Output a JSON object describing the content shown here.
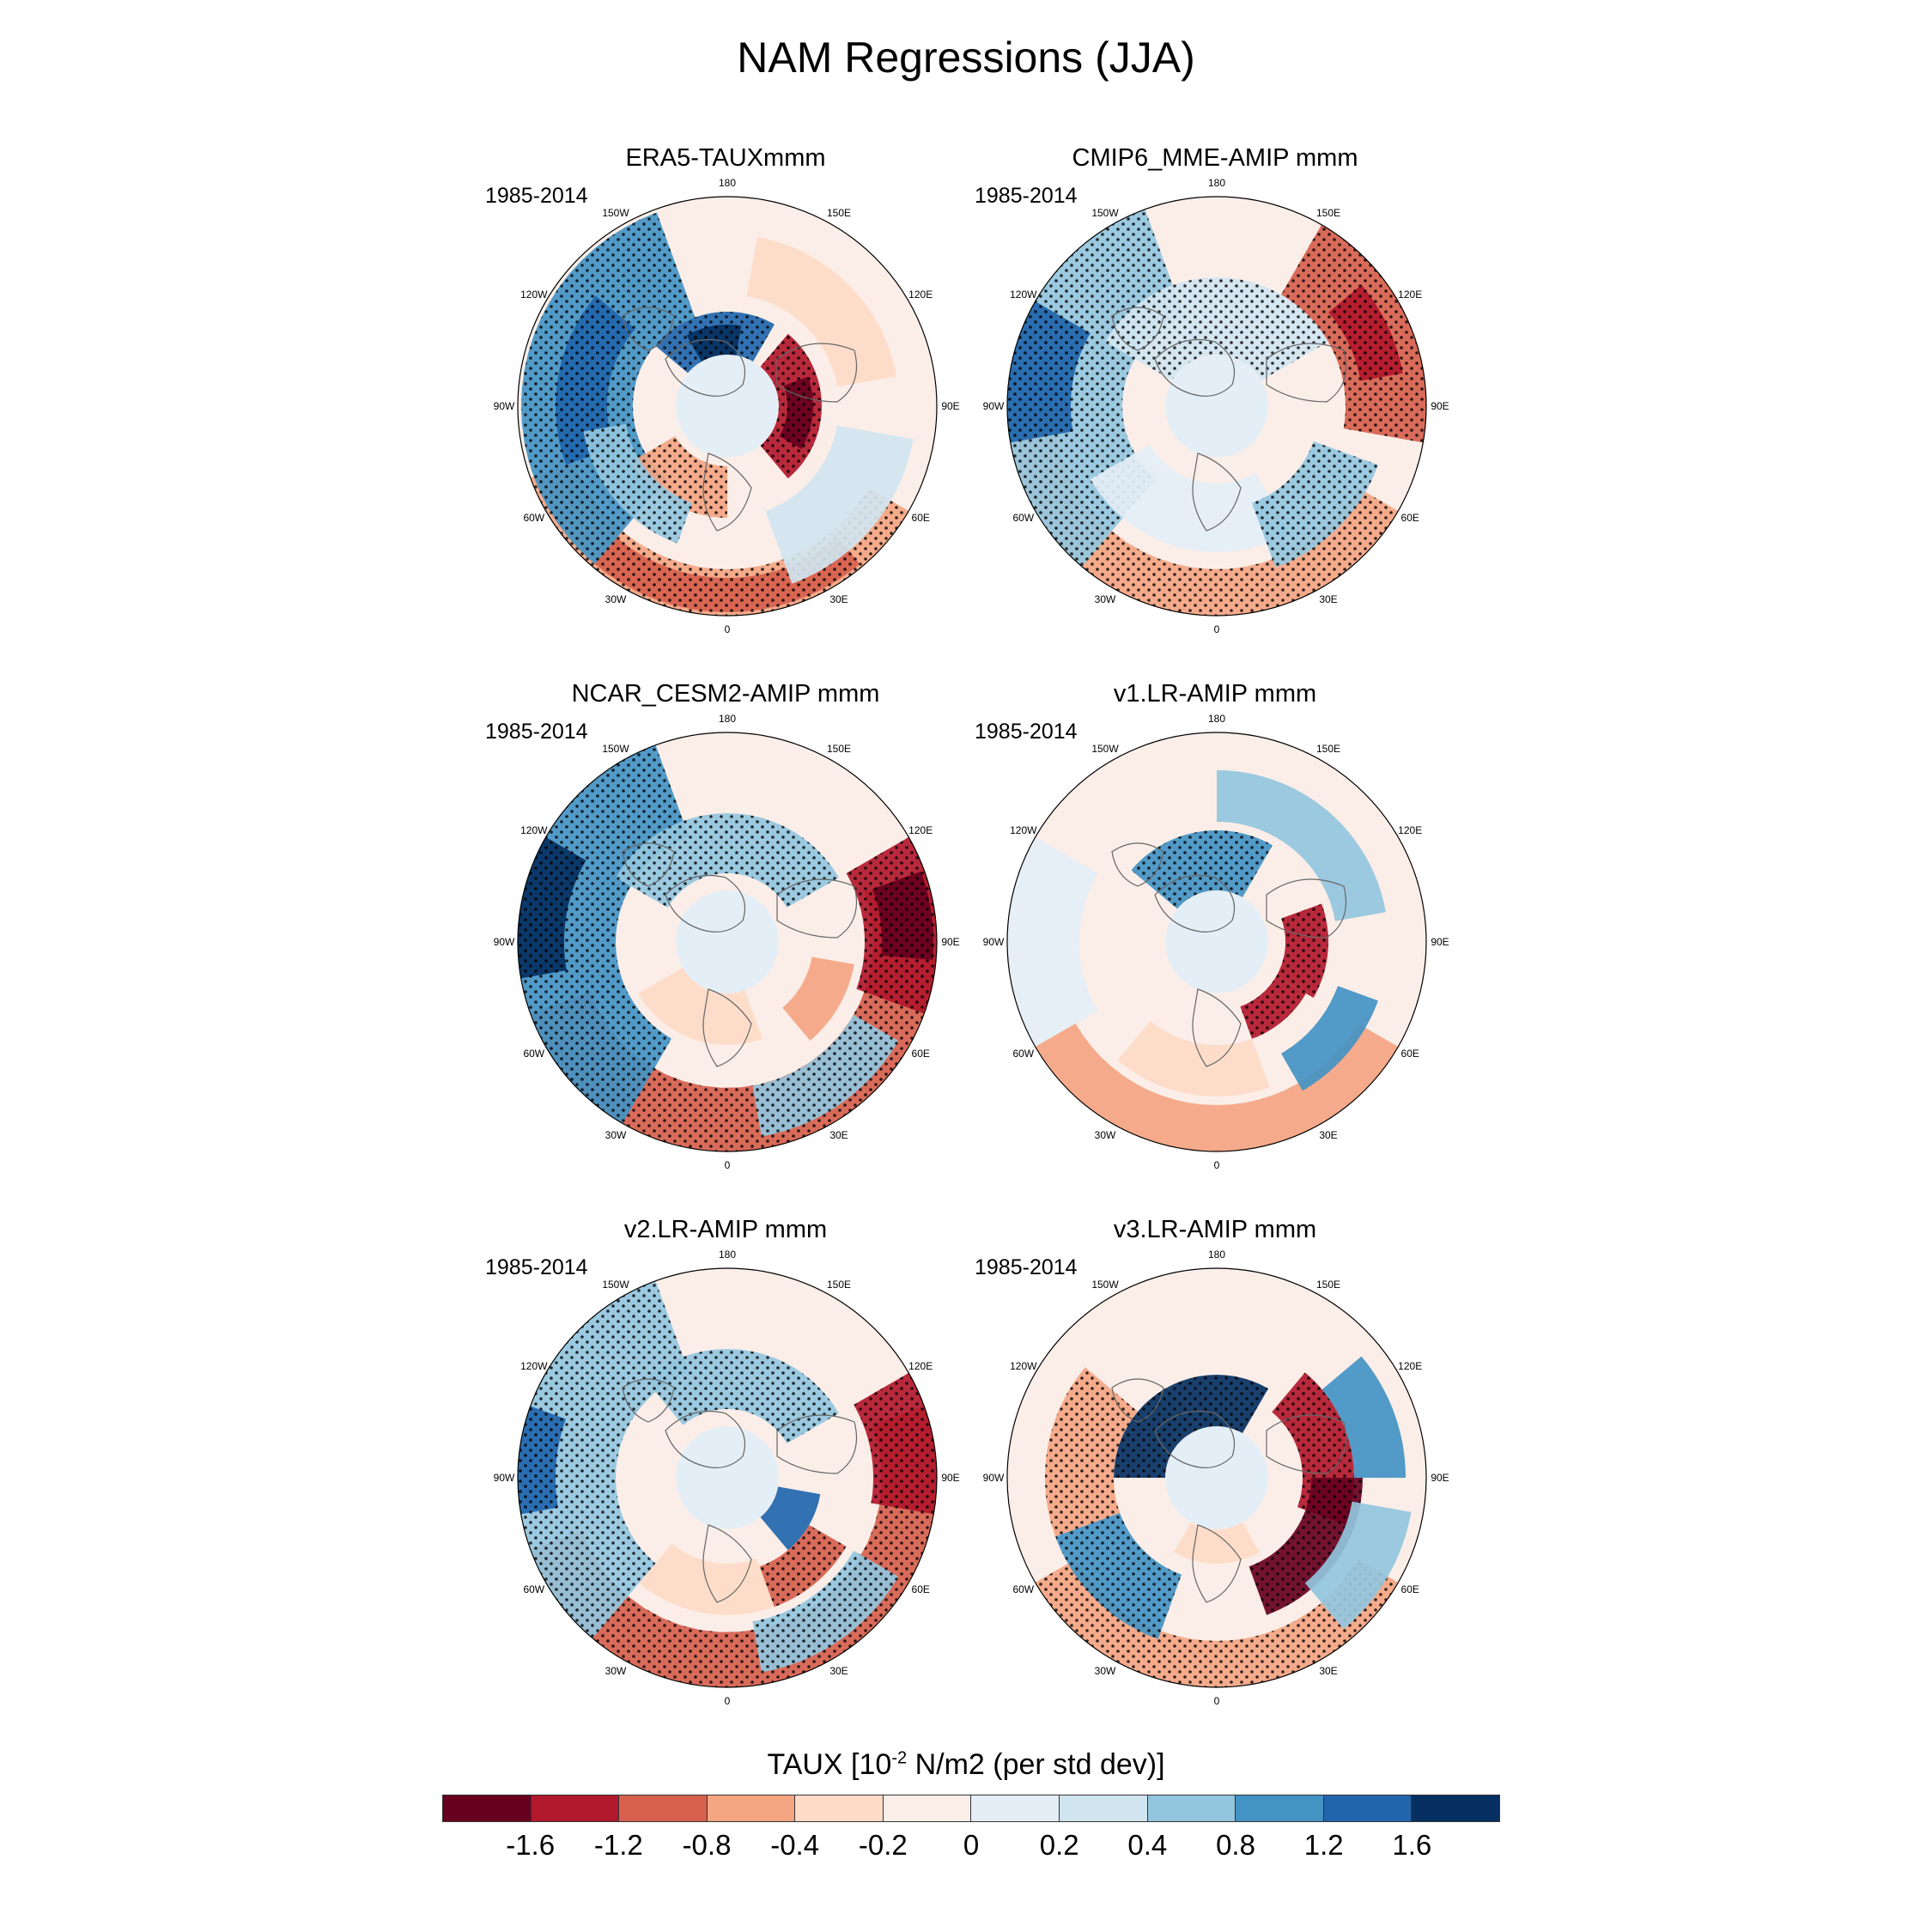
{
  "figure": {
    "title": "NAM Regressions (JJA)",
    "period": "1985-2014"
  },
  "longitude_labels": [
    "180",
    "150E",
    "120E",
    "90E",
    "60E",
    "30E",
    "0",
    "30W",
    "60W",
    "90W",
    "120W",
    "150W"
  ],
  "panels": [
    {
      "title": "ERA5-TAUXmmm",
      "period": "1985-2014",
      "style": "era5"
    },
    {
      "title": "CMIP6_MME-AMIP  mmm",
      "period": "1985-2014",
      "style": "mme"
    },
    {
      "title": "NCAR_CESM2-AMIP  mmm",
      "period": "1985-2014",
      "style": "cesm"
    },
    {
      "title": "v1.LR-AMIP  mmm",
      "period": "1985-2014",
      "style": "v1"
    },
    {
      "title": "v2.LR-AMIP  mmm",
      "period": "1985-2014",
      "style": "v2"
    },
    {
      "title": "v3.LR-AMIP  mmm",
      "period": "1985-2014",
      "style": "v3"
    }
  ],
  "colorbar": {
    "title_prefix": "TAUX [10",
    "title_exp": "-2",
    "title_suffix": " N/m2 (per std dev)]",
    "colors": [
      "#67001f",
      "#b2182b",
      "#d6604d",
      "#f4a582",
      "#fddbc7",
      "#fbeee8",
      "#e4eef6",
      "#d1e5f0",
      "#92c5de",
      "#4393c3",
      "#2166ac",
      "#053061"
    ],
    "tick_labels": [
      "-1.6",
      "-1.2",
      "-0.8",
      "-0.4",
      "-0.2",
      "0",
      "0.2",
      "0.4",
      "0.8",
      "1.2",
      "1.6"
    ]
  }
}
